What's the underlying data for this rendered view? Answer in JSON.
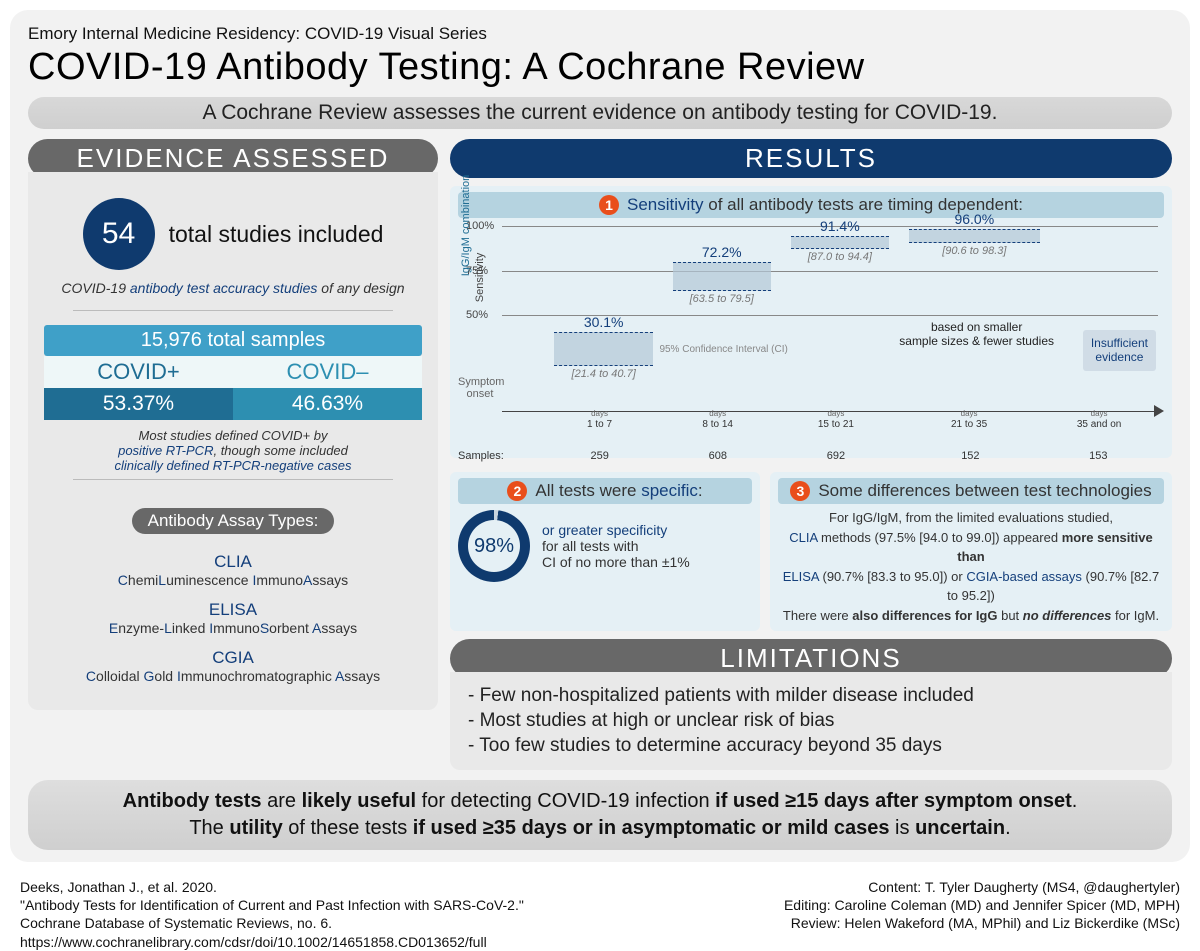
{
  "series": "Emory Internal Medicine Residency: COVID-19 Visual Series",
  "title": "COVID-19 Antibody Testing: A Cochrane Review",
  "subtitle": "A Cochrane Review assesses the current evidence on antibody testing for COVID-19.",
  "evidence": {
    "header": "EVIDENCE ASSESSED",
    "studies_n": "54",
    "studies_label": "total studies included",
    "desc1_pre": "COVID-19 ",
    "desc1_em": "antibody test accuracy studies",
    "desc1_post": " of any design",
    "samples_total": "15,976 total samples",
    "covid_pos_label": "COVID+",
    "covid_neg_label": "COVID–",
    "covid_pos_pct": "53.37%",
    "covid_neg_pct": "46.63%",
    "desc2_l1": "Most studies defined COVID+ by",
    "desc2_em": "positive RT-PCR",
    "desc2_l2b": ", though some included",
    "desc2_l3": "clinically defined RT-PCR-negative cases",
    "assay_header": "Antibody Assay Types:",
    "assays": [
      {
        "abbr": "CLIA",
        "full_html": "<b>C</b>hemi<b>L</b>uminescence <b>I</b>mmuno<b>A</b>ssays"
      },
      {
        "abbr": "ELISA",
        "full_html": "<b>E</b>nzyme-<b>L</b>inked <b>I</b>mmuno<b>S</b>orbent <b>A</b>ssays"
      },
      {
        "abbr": "CGIA",
        "full_html": "<b>C</b>olloidal <b>G</b>old <b>I</b>mmunochromatographic <b>A</b>ssays"
      }
    ]
  },
  "results": {
    "header": "RESULTS",
    "r1_pre": "Sensitivity",
    "r1_post": " of all antibody tests are timing dependent:",
    "chart": {
      "ylabel1": "IgG/IgM combination",
      "ylabel2": "Sensitivity",
      "yticks": [
        "100%",
        "75%",
        "50%"
      ],
      "ytick_pos_pct": [
        0,
        25,
        50
      ],
      "symptom_onset": "Symptom\nonset",
      "ci_note": "95% Confidence Interval (CI)",
      "note": "based on smaller\nsample sizes & fewer studies",
      "insufficient": "Insufficient\nevidence",
      "samples_label": "Samples:",
      "segments": [
        {
          "days": "1 to 7",
          "pt": "30.1%",
          "ci": "[21.4 to 40.7]",
          "lo": 21.4,
          "hi": 40.7,
          "samples": "259",
          "x": 8,
          "w": 15
        },
        {
          "days": "8 to 14",
          "pt": "72.2%",
          "ci": "[63.5 to 79.5]",
          "lo": 63.5,
          "hi": 79.5,
          "samples": "608",
          "x": 26,
          "w": 15
        },
        {
          "days": "15 to 21",
          "pt": "91.4%",
          "ci": "[87.0 to 94.4]",
          "lo": 87.0,
          "hi": 94.4,
          "samples": "692",
          "x": 44,
          "w": 15
        },
        {
          "days": "21 to 35",
          "pt": "96.0%",
          "ci": "[90.6 to 98.3]",
          "lo": 90.6,
          "hi": 98.3,
          "samples": "152",
          "x": 62,
          "w": 20
        },
        {
          "days": "35 and on",
          "pt": "",
          "ci": "",
          "lo": 0,
          "hi": 0,
          "samples": "153",
          "x": 85,
          "w": 13
        }
      ]
    },
    "r2_text_pre": "All tests were ",
    "r2_text_em": "specific",
    "r2_text_post": ":",
    "spec_pct": "98%",
    "spec_desc_l1": "or greater specificity",
    "spec_desc_l2": "for all tests with",
    "spec_desc_l3": "CI of no more than ±1%",
    "r3_text": "Some differences between test technologies",
    "tech_l1": "For IgG/IgM, from the limited evaluations studied,",
    "tech_l2_pre": "CLIA",
    "tech_l2_mid": " methods (97.5% [94.0 to 99.0]) appeared ",
    "tech_l2_b": "more sensitive than",
    "tech_l3_a": "ELISA",
    "tech_l3_mid": " (90.7% [83.3 to 95.0]) or ",
    "tech_l3_b": "CGIA-based assays",
    "tech_l3_end": " (90.7% [82.7 to 95.2])",
    "tech_l4_pre": "There were ",
    "tech_l4_b1": "also differences for IgG",
    "tech_l4_mid": " but ",
    "tech_l4_b2": "no differences",
    "tech_l4_end": " for IgM."
  },
  "limitations": {
    "header": "LIMITATIONS",
    "items": [
      "- Few non-hospitalized patients with milder disease included",
      "- Most studies at high or unclear risk of bias",
      "- Too few studies to determine accuracy beyond 35 days"
    ]
  },
  "conclusion": {
    "l1_a": "Antibody tests",
    "l1_b": " are ",
    "l1_c": "likely useful",
    "l1_d": " for detecting COVID-19 infection ",
    "l1_e": "if used ≥15 days after symptom onset",
    "l1_f": ".",
    "l2_a": "The ",
    "l2_b": "utility",
    "l2_c": " of these tests ",
    "l2_d": "if used ≥35 days or in asymptomatic or mild cases",
    "l2_e": " is ",
    "l2_f": "uncertain",
    "l2_g": "."
  },
  "footer": {
    "left": [
      "Deeks, Jonathan J., et al. 2020.",
      "\"Antibody Tests for Identification of Current and Past Infection with SARS-CoV-2.\"",
      "Cochrane Database of Systematic Reviews, no. 6.",
      "https://www.cochranelibrary.com/cdsr/doi/10.1002/14651858.CD013652/full"
    ],
    "right": [
      "Content: T. Tyler Daugherty (MS4, @daughertyler)",
      "Editing: Caroline Coleman (MD) and Jennifer Spicer (MD, MPH)",
      "Review: Helen Wakeford (MA, MPhil) and Liz Bickerdike (MSc)"
    ]
  }
}
